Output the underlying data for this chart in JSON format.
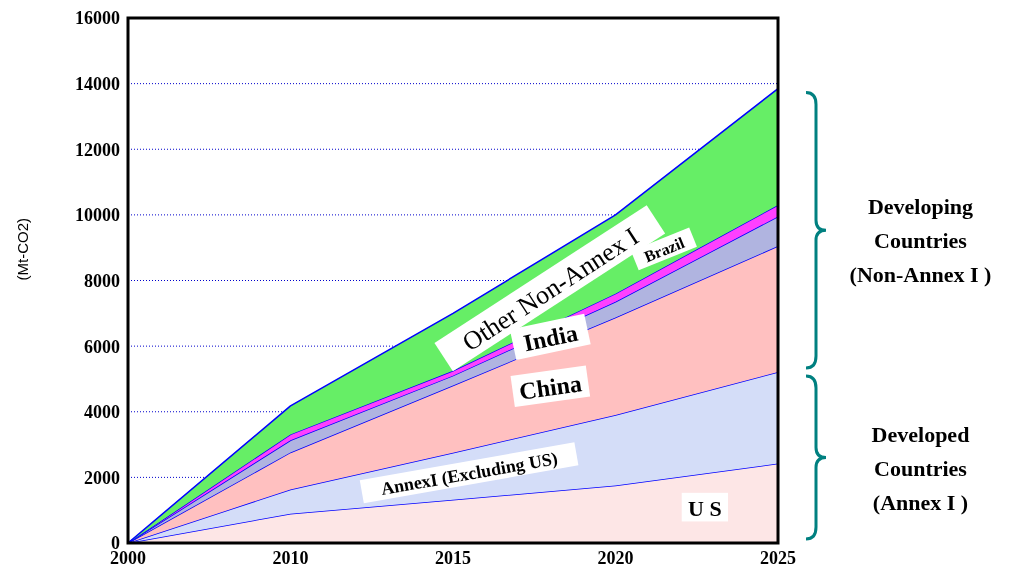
{
  "chart_data": {
    "type": "area",
    "stacked": true,
    "ylabel": "(Mt-CO2)",
    "categories": [
      "2000",
      "2010",
      "2015",
      "2020",
      "2025"
    ],
    "series": [
      {
        "name": "U S",
        "color": "#fde6e6",
        "values": [
          0,
          890,
          1320,
          1750,
          2420
        ]
      },
      {
        "name": "AnnexI (Excluding US)",
        "color": "#d4ddf8",
        "values": [
          0,
          740,
          1430,
          2150,
          2790
        ]
      },
      {
        "name": "China",
        "color": "#ffc0c0",
        "values": [
          0,
          1130,
          2050,
          2970,
          3840
        ]
      },
      {
        "name": "India",
        "color": "#b0b4e0",
        "values": [
          0,
          370,
          300,
          480,
          900
        ]
      },
      {
        "name": "Brazil",
        "color": "#ff40ff",
        "values": [
          0,
          180,
          150,
          250,
          350
        ]
      },
      {
        "name": "Other Non-Annex I",
        "color": "#66ee66",
        "values": [
          0,
          870,
          1750,
          2400,
          3550
        ]
      }
    ],
    "ylim": [
      0,
      16000
    ],
    "yticks": [
      0,
      2000,
      4000,
      6000,
      8000,
      10000,
      12000,
      14000,
      16000
    ],
    "grid": "y",
    "annotations": [
      "Developed Countries (Annex I )",
      "Developing Countries (Non-Annex I )"
    ]
  }
}
